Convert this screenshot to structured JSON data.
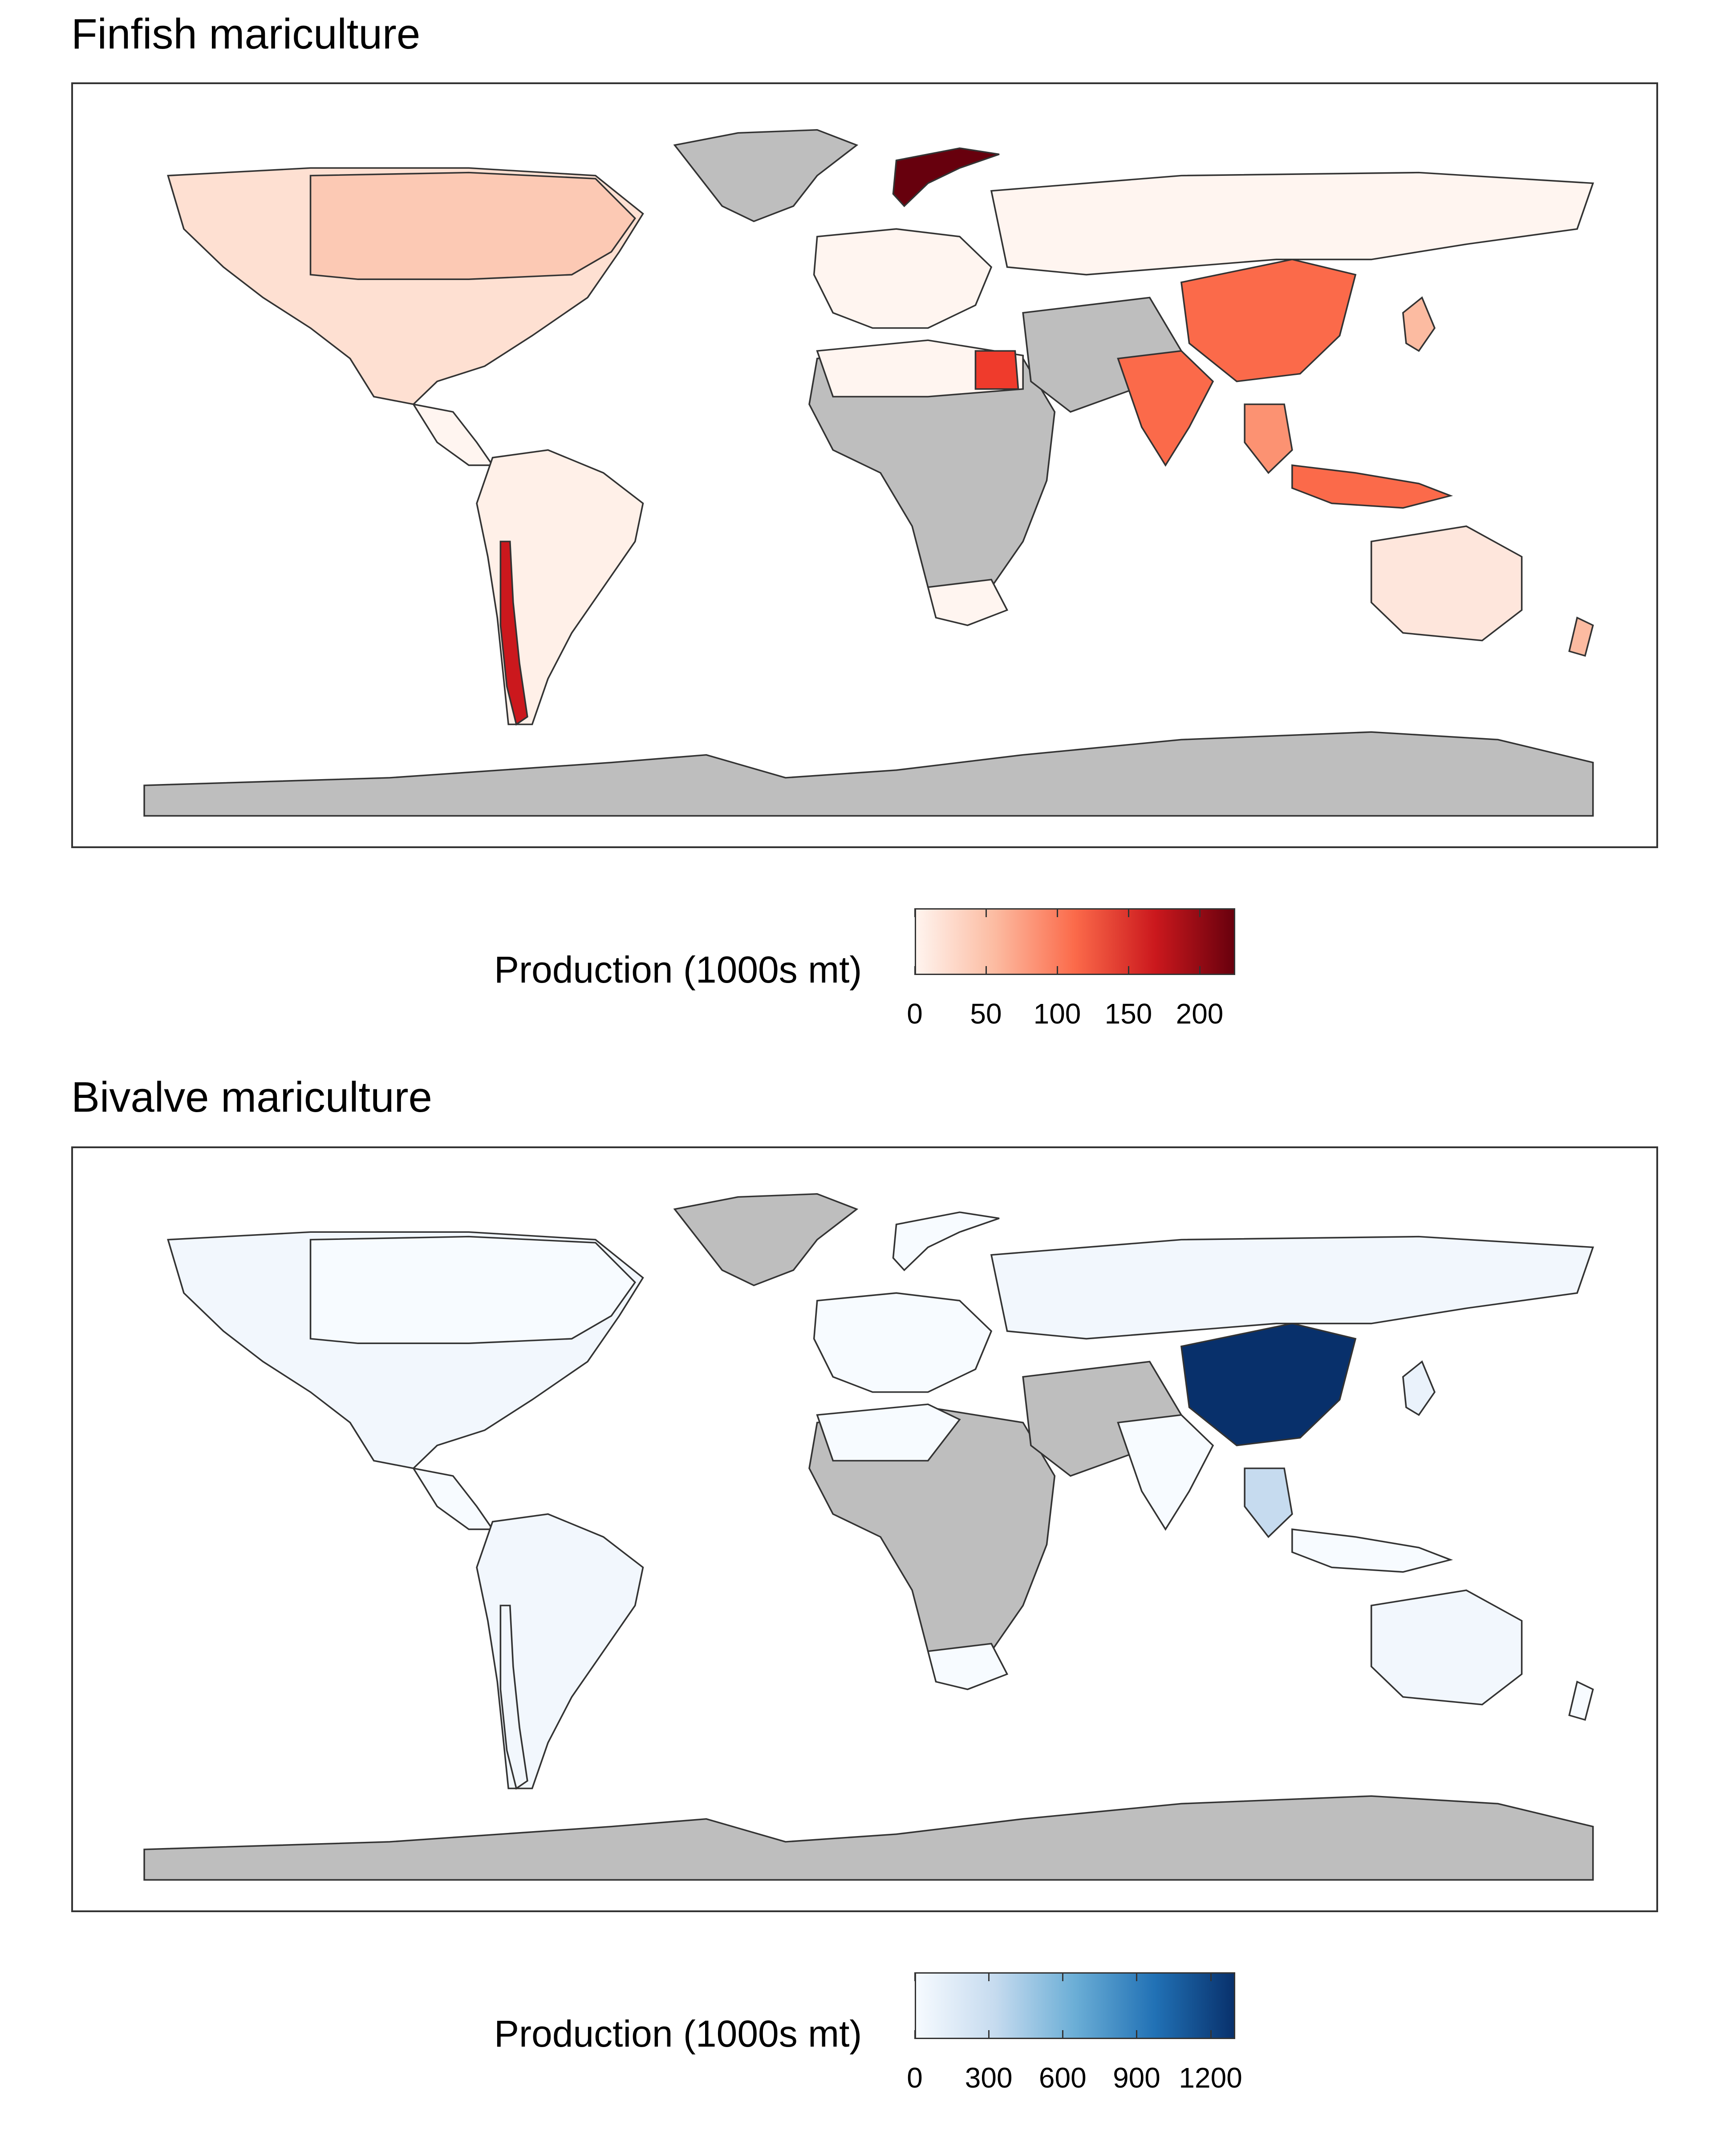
{
  "panels": [
    {
      "title": "Finfish mariculture",
      "legend": {
        "title": "Production (1000s mt)",
        "ticks": [
          "0",
          "50",
          "100",
          "150",
          "200"
        ],
        "tick_values": [
          0,
          50,
          100,
          150,
          200
        ],
        "max": 225,
        "colors": [
          "#fff5f0",
          "#fcbba1",
          "#fb6a4a",
          "#cb181d",
          "#67000d"
        ]
      },
      "highlighted_regions": [
        {
          "region": "Norway",
          "level": "very high"
        },
        {
          "region": "Chile",
          "level": "high"
        },
        {
          "region": "Egypt",
          "level": "high"
        },
        {
          "region": "China",
          "level": "medium-high"
        },
        {
          "region": "India",
          "level": "medium-high"
        },
        {
          "region": "Indonesia",
          "level": "medium-high"
        },
        {
          "region": "Canada",
          "level": "low"
        }
      ]
    },
    {
      "title": "Bivalve mariculture",
      "legend": {
        "title": "Production (1000s mt)",
        "ticks": [
          "0",
          "300",
          "600",
          "900",
          "1200"
        ],
        "tick_values": [
          0,
          300,
          600,
          900,
          1200
        ],
        "max": 1300,
        "colors": [
          "#f7fbff",
          "#c6dbef",
          "#6baed6",
          "#2171b5",
          "#08306b"
        ]
      },
      "highlighted_regions": [
        {
          "region": "China",
          "level": "very high"
        },
        {
          "region": "Thailand",
          "level": "low"
        }
      ]
    }
  ],
  "map_colors": {
    "no_data": "#bebebe",
    "border": "#333333"
  }
}
